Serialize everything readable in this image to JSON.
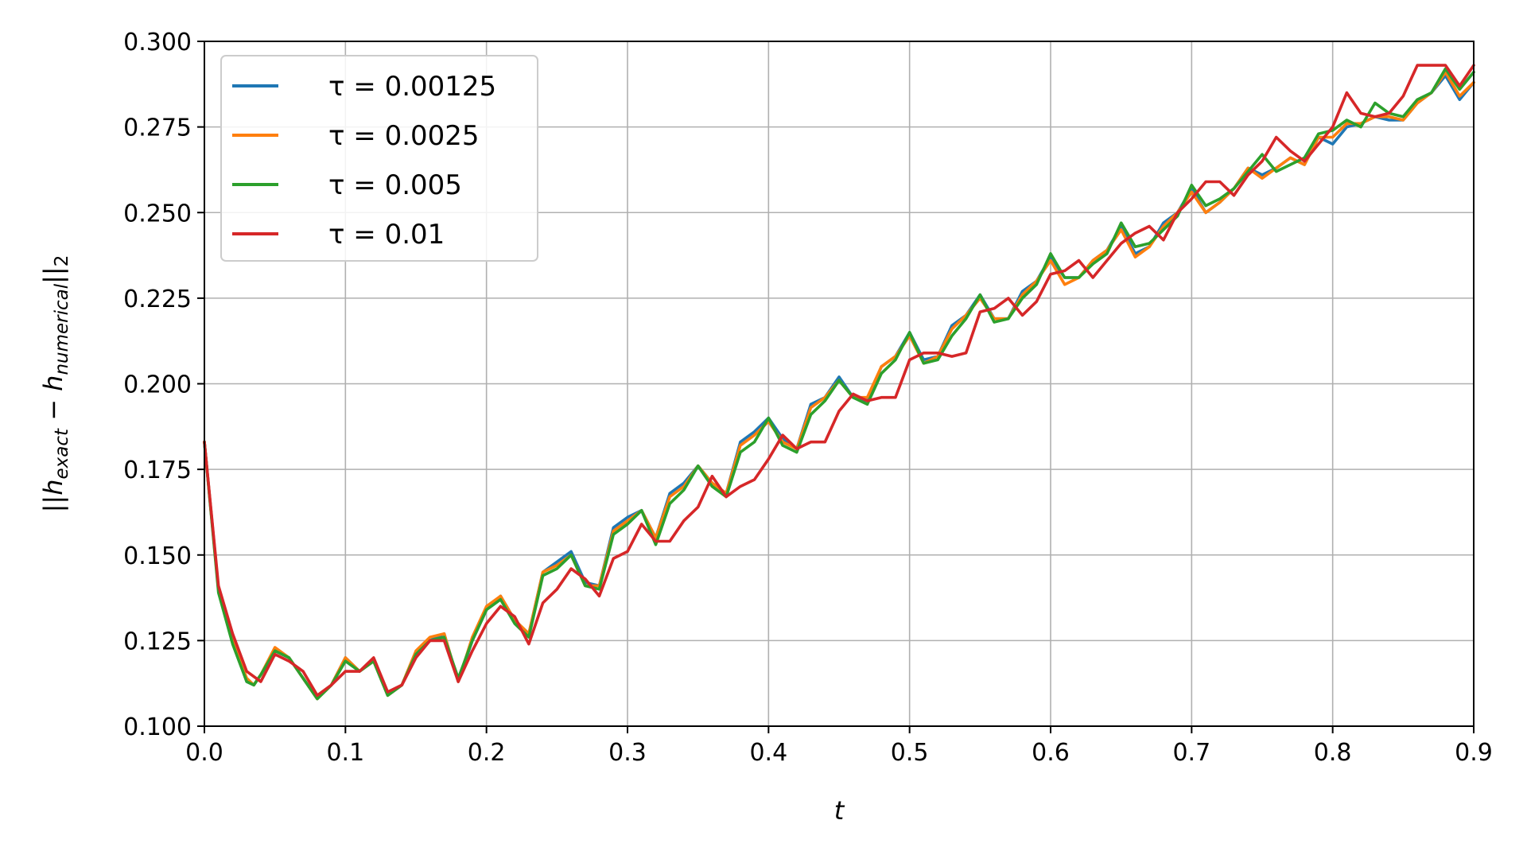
{
  "chart_data": {
    "type": "line",
    "xlabel": "t",
    "ylabel": {
      "prefix": "||h",
      "sub1": "exact",
      "mid": " − h",
      "sub2": "numerical",
      "suffix": "||",
      "sub3": "2"
    },
    "xlim": [
      0.0,
      0.9
    ],
    "ylim": [
      0.1,
      0.3
    ],
    "xticks": [
      "0.0",
      "0.1",
      "0.2",
      "0.3",
      "0.4",
      "0.5",
      "0.6",
      "0.7",
      "0.8",
      "0.9"
    ],
    "yticks": [
      "0.100",
      "0.125",
      "0.150",
      "0.175",
      "0.200",
      "0.225",
      "0.250",
      "0.275",
      "0.300"
    ],
    "grid": true,
    "legend_position": "top-left",
    "series": [
      {
        "name": "τ = 0.00125",
        "color": "#1f77b4",
        "x": [
          0.0,
          0.01,
          0.02,
          0.03,
          0.035,
          0.04,
          0.05,
          0.06,
          0.07,
          0.08,
          0.09,
          0.1,
          0.11,
          0.12,
          0.13,
          0.14,
          0.15,
          0.16,
          0.17,
          0.18,
          0.19,
          0.2,
          0.21,
          0.22,
          0.23,
          0.24,
          0.25,
          0.26,
          0.27,
          0.28,
          0.29,
          0.3,
          0.31,
          0.32,
          0.33,
          0.34,
          0.35,
          0.36,
          0.37,
          0.38,
          0.39,
          0.4,
          0.41,
          0.42,
          0.43,
          0.44,
          0.45,
          0.46,
          0.47,
          0.48,
          0.49,
          0.5,
          0.51,
          0.52,
          0.53,
          0.54,
          0.55,
          0.56,
          0.57,
          0.58,
          0.59,
          0.6,
          0.61,
          0.62,
          0.63,
          0.64,
          0.65,
          0.66,
          0.67,
          0.68,
          0.69,
          0.7,
          0.71,
          0.72,
          0.73,
          0.74,
          0.75,
          0.76,
          0.77,
          0.78,
          0.79,
          0.8,
          0.81,
          0.82,
          0.83,
          0.84,
          0.85,
          0.86,
          0.87,
          0.88,
          0.89,
          0.9
        ],
        "y": [
          0.183,
          0.14,
          0.125,
          0.113,
          0.112,
          0.115,
          0.122,
          0.12,
          0.114,
          0.108,
          0.112,
          0.12,
          0.116,
          0.119,
          0.109,
          0.112,
          0.121,
          0.125,
          0.127,
          0.113,
          0.125,
          0.134,
          0.138,
          0.131,
          0.127,
          0.145,
          0.148,
          0.151,
          0.142,
          0.141,
          0.158,
          0.161,
          0.163,
          0.155,
          0.168,
          0.171,
          0.176,
          0.171,
          0.168,
          0.183,
          0.186,
          0.19,
          0.184,
          0.181,
          0.194,
          0.196,
          0.202,
          0.196,
          0.195,
          0.205,
          0.208,
          0.215,
          0.207,
          0.208,
          0.217,
          0.22,
          0.226,
          0.219,
          0.219,
          0.227,
          0.23,
          0.237,
          0.231,
          0.231,
          0.236,
          0.239,
          0.246,
          0.238,
          0.24,
          0.247,
          0.25,
          0.257,
          0.25,
          0.253,
          0.257,
          0.263,
          0.261,
          0.263,
          0.266,
          0.264,
          0.272,
          0.27,
          0.275,
          0.276,
          0.278,
          0.277,
          0.277,
          0.282,
          0.285,
          0.29,
          0.283,
          0.288
        ]
      },
      {
        "name": "τ = 0.0025",
        "color": "#ff7f0e",
        "x": [
          0.0,
          0.01,
          0.02,
          0.03,
          0.035,
          0.04,
          0.05,
          0.06,
          0.07,
          0.08,
          0.09,
          0.1,
          0.11,
          0.12,
          0.13,
          0.14,
          0.15,
          0.16,
          0.17,
          0.18,
          0.19,
          0.2,
          0.21,
          0.22,
          0.23,
          0.24,
          0.25,
          0.26,
          0.27,
          0.28,
          0.29,
          0.3,
          0.31,
          0.32,
          0.33,
          0.34,
          0.35,
          0.36,
          0.37,
          0.38,
          0.39,
          0.4,
          0.41,
          0.42,
          0.43,
          0.44,
          0.45,
          0.46,
          0.47,
          0.48,
          0.49,
          0.5,
          0.51,
          0.52,
          0.53,
          0.54,
          0.55,
          0.56,
          0.57,
          0.58,
          0.59,
          0.6,
          0.61,
          0.62,
          0.63,
          0.64,
          0.65,
          0.66,
          0.67,
          0.68,
          0.69,
          0.7,
          0.71,
          0.72,
          0.73,
          0.74,
          0.75,
          0.76,
          0.77,
          0.78,
          0.79,
          0.8,
          0.81,
          0.82,
          0.83,
          0.84,
          0.85,
          0.86,
          0.87,
          0.88,
          0.89,
          0.9
        ],
        "y": [
          0.183,
          0.14,
          0.125,
          0.114,
          0.112,
          0.115,
          0.123,
          0.12,
          0.114,
          0.108,
          0.112,
          0.12,
          0.116,
          0.119,
          0.109,
          0.112,
          0.122,
          0.126,
          0.127,
          0.113,
          0.126,
          0.135,
          0.138,
          0.131,
          0.127,
          0.145,
          0.147,
          0.15,
          0.141,
          0.141,
          0.157,
          0.16,
          0.163,
          0.155,
          0.167,
          0.17,
          0.176,
          0.171,
          0.168,
          0.182,
          0.185,
          0.189,
          0.183,
          0.181,
          0.193,
          0.196,
          0.201,
          0.196,
          0.196,
          0.205,
          0.208,
          0.214,
          0.206,
          0.208,
          0.216,
          0.22,
          0.225,
          0.219,
          0.219,
          0.226,
          0.23,
          0.236,
          0.229,
          0.231,
          0.236,
          0.239,
          0.245,
          0.237,
          0.24,
          0.246,
          0.25,
          0.256,
          0.25,
          0.253,
          0.257,
          0.263,
          0.26,
          0.263,
          0.266,
          0.264,
          0.272,
          0.272,
          0.276,
          0.276,
          0.278,
          0.278,
          0.277,
          0.282,
          0.285,
          0.291,
          0.284,
          0.288
        ]
      },
      {
        "name": "τ = 0.005",
        "color": "#2ca02c",
        "x": [
          0.0,
          0.01,
          0.02,
          0.03,
          0.035,
          0.04,
          0.05,
          0.06,
          0.07,
          0.08,
          0.09,
          0.1,
          0.11,
          0.12,
          0.13,
          0.14,
          0.15,
          0.16,
          0.17,
          0.18,
          0.19,
          0.2,
          0.21,
          0.22,
          0.23,
          0.24,
          0.25,
          0.26,
          0.27,
          0.28,
          0.29,
          0.3,
          0.31,
          0.32,
          0.33,
          0.34,
          0.35,
          0.36,
          0.37,
          0.38,
          0.39,
          0.4,
          0.41,
          0.42,
          0.43,
          0.44,
          0.45,
          0.46,
          0.47,
          0.48,
          0.49,
          0.5,
          0.51,
          0.52,
          0.53,
          0.54,
          0.55,
          0.56,
          0.57,
          0.58,
          0.59,
          0.6,
          0.61,
          0.62,
          0.63,
          0.64,
          0.65,
          0.66,
          0.67,
          0.68,
          0.69,
          0.7,
          0.71,
          0.72,
          0.73,
          0.74,
          0.75,
          0.76,
          0.77,
          0.78,
          0.79,
          0.8,
          0.81,
          0.82,
          0.83,
          0.84,
          0.85,
          0.86,
          0.87,
          0.88,
          0.89,
          0.9
        ],
        "y": [
          0.183,
          0.139,
          0.124,
          0.113,
          0.112,
          0.115,
          0.122,
          0.12,
          0.114,
          0.108,
          0.112,
          0.119,
          0.116,
          0.119,
          0.109,
          0.112,
          0.121,
          0.125,
          0.126,
          0.114,
          0.125,
          0.134,
          0.137,
          0.13,
          0.126,
          0.144,
          0.146,
          0.15,
          0.141,
          0.14,
          0.156,
          0.159,
          0.163,
          0.153,
          0.165,
          0.169,
          0.176,
          0.17,
          0.167,
          0.18,
          0.183,
          0.19,
          0.182,
          0.18,
          0.191,
          0.195,
          0.201,
          0.196,
          0.194,
          0.203,
          0.207,
          0.215,
          0.206,
          0.207,
          0.214,
          0.219,
          0.226,
          0.218,
          0.219,
          0.225,
          0.229,
          0.238,
          0.231,
          0.231,
          0.235,
          0.238,
          0.247,
          0.24,
          0.241,
          0.245,
          0.249,
          0.258,
          0.252,
          0.254,
          0.257,
          0.262,
          0.267,
          0.262,
          0.264,
          0.266,
          0.273,
          0.274,
          0.277,
          0.275,
          0.282,
          0.279,
          0.278,
          0.283,
          0.285,
          0.292,
          0.286,
          0.291
        ]
      },
      {
        "name": "τ = 0.01",
        "color": "#d62728",
        "x": [
          0.0,
          0.01,
          0.02,
          0.03,
          0.04,
          0.05,
          0.06,
          0.07,
          0.08,
          0.09,
          0.1,
          0.11,
          0.12,
          0.13,
          0.14,
          0.15,
          0.16,
          0.17,
          0.18,
          0.19,
          0.2,
          0.21,
          0.22,
          0.23,
          0.24,
          0.25,
          0.26,
          0.27,
          0.28,
          0.29,
          0.3,
          0.31,
          0.32,
          0.33,
          0.34,
          0.35,
          0.36,
          0.37,
          0.38,
          0.39,
          0.4,
          0.41,
          0.42,
          0.43,
          0.44,
          0.45,
          0.46,
          0.47,
          0.48,
          0.49,
          0.5,
          0.51,
          0.52,
          0.53,
          0.54,
          0.55,
          0.56,
          0.57,
          0.58,
          0.59,
          0.6,
          0.61,
          0.62,
          0.63,
          0.64,
          0.65,
          0.66,
          0.67,
          0.68,
          0.69,
          0.7,
          0.71,
          0.72,
          0.73,
          0.74,
          0.75,
          0.76,
          0.77,
          0.78,
          0.79,
          0.8,
          0.81,
          0.82,
          0.83,
          0.84,
          0.85,
          0.86,
          0.87,
          0.88,
          0.89,
          0.9
        ],
        "y": [
          0.183,
          0.141,
          0.127,
          0.116,
          0.113,
          0.121,
          0.119,
          0.116,
          0.109,
          0.112,
          0.116,
          0.116,
          0.12,
          0.11,
          0.112,
          0.12,
          0.125,
          0.125,
          0.113,
          0.122,
          0.13,
          0.135,
          0.132,
          0.124,
          0.136,
          0.14,
          0.146,
          0.143,
          0.138,
          0.149,
          0.151,
          0.159,
          0.154,
          0.154,
          0.16,
          0.164,
          0.173,
          0.167,
          0.17,
          0.172,
          0.178,
          0.185,
          0.181,
          0.183,
          0.183,
          0.192,
          0.197,
          0.195,
          0.196,
          0.196,
          0.207,
          0.209,
          0.209,
          0.208,
          0.209,
          0.221,
          0.222,
          0.225,
          0.22,
          0.224,
          0.232,
          0.233,
          0.236,
          0.231,
          0.236,
          0.241,
          0.244,
          0.246,
          0.242,
          0.25,
          0.254,
          0.259,
          0.259,
          0.255,
          0.261,
          0.265,
          0.272,
          0.268,
          0.265,
          0.27,
          0.275,
          0.285,
          0.279,
          0.278,
          0.279,
          0.284,
          0.293,
          0.293,
          0.293,
          0.287,
          0.293
        ]
      }
    ]
  }
}
